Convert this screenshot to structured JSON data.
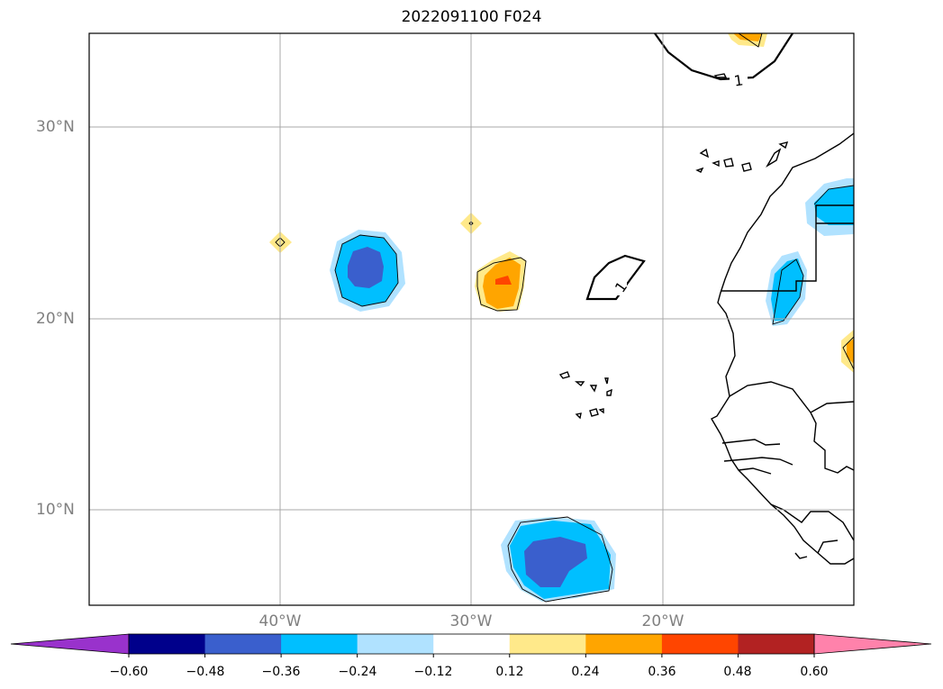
{
  "title": "2022091100 F024",
  "lat_labels": [
    "30°N",
    "20°N",
    "10°N"
  ],
  "lon_labels": [
    "40°W",
    "30°W",
    "20°W"
  ],
  "contour_label": "1",
  "colorbar": {
    "levels": [
      "−0.60",
      "−0.48",
      "−0.36",
      "−0.24",
      "−0.12",
      "0.12",
      "0.24",
      "0.36",
      "0.48",
      "0.60"
    ],
    "colors": [
      "#9932cc",
      "#00008b",
      "#3a5fcd",
      "#00bfff",
      "#b0e2ff",
      "#ffffff",
      "#ffe98a",
      "#ffa500",
      "#ff4500",
      "#b22222",
      "#ff82ab"
    ],
    "extend": "both"
  },
  "map": {
    "lon_range": [
      "50°W",
      "10°W"
    ],
    "lat_range": [
      "5°N",
      "35°N"
    ],
    "grid": true
  }
}
